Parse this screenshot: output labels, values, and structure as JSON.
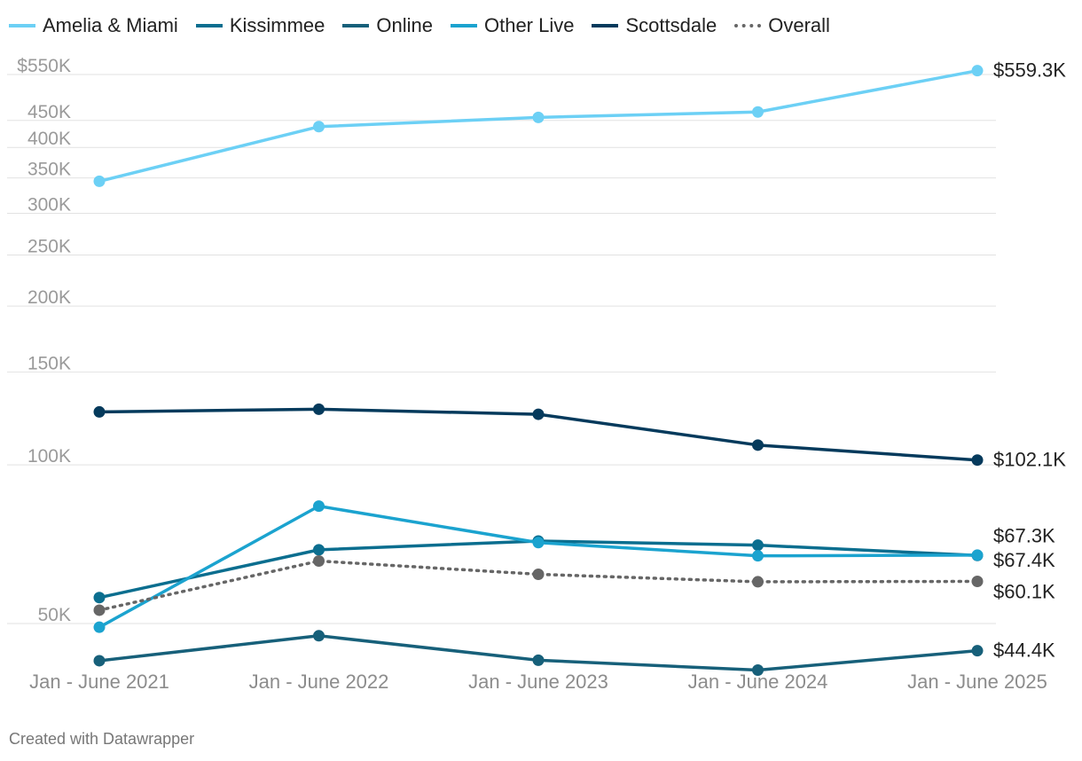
{
  "chart_data": {
    "type": "line",
    "title": "",
    "xlabel": "",
    "ylabel": "",
    "y_scale": "log",
    "ylim": [
      43000,
      580000
    ],
    "grid": true,
    "legend_position": "top-left",
    "categories": [
      "Jan - June 2021",
      "Jan - June 2022",
      "Jan - June 2023",
      "Jan - June 2024",
      "Jan - June 2025"
    ],
    "y_ticks": [
      {
        "value": 50000,
        "label": "50K"
      },
      {
        "value": 100000,
        "label": "100K"
      },
      {
        "value": 150000,
        "label": "150K"
      },
      {
        "value": 200000,
        "label": "200K"
      },
      {
        "value": 250000,
        "label": "250K"
      },
      {
        "value": 300000,
        "label": "300K"
      },
      {
        "value": 350000,
        "label": "350K"
      },
      {
        "value": 400000,
        "label": "400K"
      },
      {
        "value": 450000,
        "label": "450K"
      },
      {
        "value": 550000,
        "label": "$550K"
      }
    ],
    "series": [
      {
        "name": "Amelia & Miami",
        "color": "#6cd0f5",
        "style": "solid",
        "values": [
          345000,
          438000,
          456000,
          467000,
          559300
        ],
        "end_label": "$559.3K"
      },
      {
        "name": "Kissimmee",
        "color": "#0b6e8f",
        "style": "solid",
        "values": [
          56000,
          69000,
          71700,
          70400,
          67300
        ],
        "end_label": "$67.3K"
      },
      {
        "name": "Online",
        "color": "#17607a",
        "style": "solid",
        "values": [
          42500,
          47400,
          42600,
          40800,
          44400
        ],
        "end_label": "$44.4K"
      },
      {
        "name": "Other Live",
        "color": "#1ba3cf",
        "style": "solid",
        "values": [
          49200,
          83500,
          71200,
          67200,
          67400
        ],
        "end_label": "$67.4K"
      },
      {
        "name": "Scottsdale",
        "color": "#053a5c",
        "style": "solid",
        "values": [
          126000,
          127500,
          124700,
          109000,
          102100
        ],
        "end_label": "$102.1K"
      },
      {
        "name": "Overall",
        "color": "#666666",
        "style": "dotted",
        "values": [
          53000,
          65700,
          62000,
          60000,
          60100
        ],
        "end_label": "$60.1K"
      }
    ]
  },
  "footer": {
    "credit": "Created with Datawrapper"
  }
}
